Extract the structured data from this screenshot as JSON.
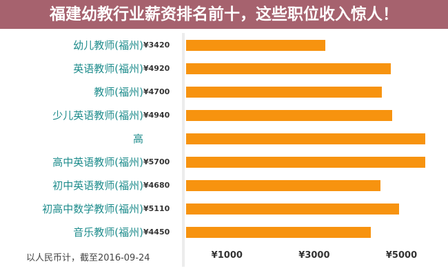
{
  "chart_data": {
    "type": "bar",
    "orientation": "horizontal",
    "categories": [
      "幼儿教师(福州)",
      "英语教师(福州)",
      "教师(福州)",
      "少儿英语教师(福州)",
      "高",
      "高中英语教师(福州)",
      "初中英语教师(福州)",
      "初高中数学教师(福州)",
      "音乐教师(福州)"
    ],
    "values": [
      3420,
      4920,
      4700,
      4940,
      5700,
      5700,
      4680,
      5110,
      4450
    ],
    "value_labels": [
      "¥3420",
      "¥4920",
      "¥4700",
      "¥4940",
      "",
      "¥5700",
      "¥4680",
      "¥5110",
      "¥4450"
    ],
    "x_ticks": [
      "¥1000",
      "¥3000",
      "¥5000"
    ],
    "x_tick_values": [
      1000,
      3000,
      5000
    ],
    "note": "以人民币计，截至2016-09-24",
    "bar_color": "#f7930f",
    "label_color": "#1e8c8c",
    "grid": false
  },
  "overlay": {
    "title": "福建幼教行业薪资排名前十，这些职位收入惊人！",
    "color": "#96465580"
  }
}
